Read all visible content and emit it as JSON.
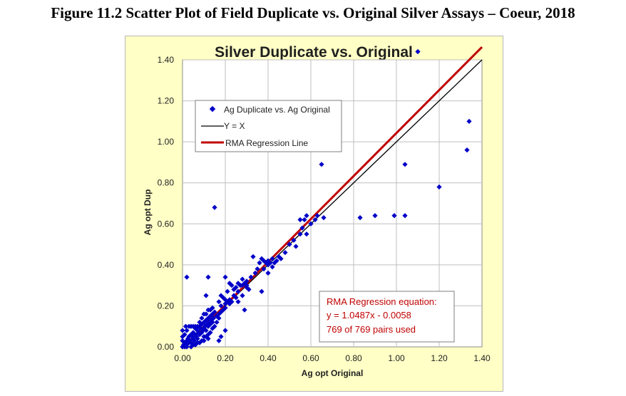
{
  "figure_title": "Figure 11.2  Scatter Plot of Field Duplicate vs. Original Silver Assays – Coeur, 2018",
  "colors": {
    "background": "#ffffc6",
    "points": "#0000c8",
    "identity": "#000000",
    "regression": "#c00000",
    "grid": "#bfbfbf"
  },
  "chart_data": {
    "type": "scatter",
    "title": "Silver Duplicate vs. Original",
    "xlabel": "Ag opt Original",
    "ylabel": "Ag opt Dup",
    "xlim": [
      0,
      1.4
    ],
    "ylim": [
      0,
      1.4
    ],
    "x_ticks": [
      "0.00",
      "0.20",
      "0.40",
      "0.60",
      "0.80",
      "1.00",
      "1.20",
      "1.40"
    ],
    "y_ticks": [
      "0.00",
      "0.20",
      "0.40",
      "0.60",
      "0.80",
      "1.00",
      "1.20",
      "1.40"
    ],
    "grid": true,
    "legend": {
      "position": "top-left",
      "entries": [
        "Ag Duplicate vs. Ag Original",
        "Y = X",
        "RMA Regression Line"
      ]
    },
    "identity_line": {
      "slope": 1,
      "intercept": 0
    },
    "regression": {
      "slope": 1.0487,
      "intercept": -0.0058
    },
    "annotation": [
      "RMA Regression equation:",
      "y = 1.0487x - 0.0058",
      "769 of 769 pairs used"
    ],
    "series": [
      {
        "name": "Ag Duplicate vs. Ag Original",
        "points": [
          [
            0.0,
            0.0
          ],
          [
            0.005,
            0.01
          ],
          [
            0.01,
            0.0
          ],
          [
            0.01,
            0.02
          ],
          [
            0.015,
            0.005
          ],
          [
            0.02,
            0.03
          ],
          [
            0.02,
            0.01
          ],
          [
            0.025,
            0.04
          ],
          [
            0.03,
            0.02
          ],
          [
            0.03,
            0.05
          ],
          [
            0.035,
            0.03
          ],
          [
            0.04,
            0.06
          ],
          [
            0.04,
            0.02
          ],
          [
            0.045,
            0.05
          ],
          [
            0.05,
            0.04
          ],
          [
            0.05,
            0.07
          ],
          [
            0.055,
            0.03
          ],
          [
            0.06,
            0.06
          ],
          [
            0.06,
            0.09
          ],
          [
            0.065,
            0.05
          ],
          [
            0.07,
            0.08
          ],
          [
            0.07,
            0.04
          ],
          [
            0.075,
            0.07
          ],
          [
            0.08,
            0.1
          ],
          [
            0.08,
            0.06
          ],
          [
            0.085,
            0.09
          ],
          [
            0.09,
            0.07
          ],
          [
            0.09,
            0.11
          ],
          [
            0.095,
            0.08
          ],
          [
            0.1,
            0.12
          ],
          [
            0.1,
            0.09
          ],
          [
            0.105,
            0.1
          ],
          [
            0.11,
            0.13
          ],
          [
            0.11,
            0.08
          ],
          [
            0.115,
            0.11
          ],
          [
            0.12,
            0.14
          ],
          [
            0.12,
            0.1
          ],
          [
            0.125,
            0.12
          ],
          [
            0.13,
            0.15
          ],
          [
            0.13,
            0.11
          ],
          [
            0.135,
            0.13
          ],
          [
            0.14,
            0.16
          ],
          [
            0.14,
            0.12
          ],
          [
            0.145,
            0.14
          ],
          [
            0.15,
            0.17
          ],
          [
            0.01,
            0.06
          ],
          [
            0.02,
            0.08
          ],
          [
            0.015,
            0.1
          ],
          [
            0.03,
            0.1
          ],
          [
            0.04,
            0.1
          ],
          [
            0.05,
            0.1
          ],
          [
            0.06,
            0.1
          ],
          [
            0.07,
            0.1
          ],
          [
            0.08,
            0.12
          ],
          [
            0.09,
            0.14
          ],
          [
            0.1,
            0.16
          ],
          [
            0.11,
            0.16
          ],
          [
            0.12,
            0.18
          ],
          [
            0.13,
            0.18
          ],
          [
            0.14,
            0.19
          ],
          [
            0.05,
            0.01
          ],
          [
            0.07,
            0.02
          ],
          [
            0.09,
            0.03
          ],
          [
            0.11,
            0.05
          ],
          [
            0.12,
            0.06
          ],
          [
            0.13,
            0.07
          ],
          [
            0.14,
            0.09
          ],
          [
            0.15,
            0.1
          ],
          [
            0.16,
            0.12
          ],
          [
            0.17,
            0.14
          ],
          [
            0.0,
            0.05
          ],
          [
            0.0,
            0.03
          ],
          [
            0.0,
            0.08
          ],
          [
            0.02,
            0.0
          ],
          [
            0.04,
            0.0
          ],
          [
            0.06,
            0.01
          ],
          [
            0.08,
            0.02
          ],
          [
            0.1,
            0.03
          ],
          [
            0.1,
            0.05
          ],
          [
            0.12,
            0.04
          ],
          [
            0.16,
            0.15
          ],
          [
            0.17,
            0.16
          ],
          [
            0.18,
            0.17
          ],
          [
            0.18,
            0.2
          ],
          [
            0.19,
            0.18
          ],
          [
            0.2,
            0.21
          ],
          [
            0.2,
            0.19
          ],
          [
            0.21,
            0.22
          ],
          [
            0.22,
            0.23
          ],
          [
            0.22,
            0.21
          ],
          [
            0.23,
            0.22
          ],
          [
            0.24,
            0.25
          ],
          [
            0.25,
            0.24
          ],
          [
            0.26,
            0.27
          ],
          [
            0.27,
            0.3
          ],
          [
            0.28,
            0.3
          ],
          [
            0.29,
            0.31
          ],
          [
            0.3,
            0.32
          ],
          [
            0.3,
            0.29
          ],
          [
            0.31,
            0.28
          ],
          [
            0.17,
            0.22
          ],
          [
            0.18,
            0.25
          ],
          [
            0.19,
            0.24
          ],
          [
            0.2,
            0.23
          ],
          [
            0.21,
            0.27
          ],
          [
            0.23,
            0.3
          ],
          [
            0.24,
            0.28
          ],
          [
            0.25,
            0.29
          ],
          [
            0.26,
            0.31
          ],
          [
            0.28,
            0.33
          ],
          [
            0.02,
            0.34
          ],
          [
            0.12,
            0.34
          ],
          [
            0.15,
            0.68
          ],
          [
            0.11,
            0.25
          ],
          [
            0.2,
            0.34
          ],
          [
            0.18,
            0.05
          ],
          [
            0.2,
            0.08
          ],
          [
            0.17,
            0.03
          ],
          [
            0.22,
            0.31
          ],
          [
            0.26,
            0.22
          ],
          [
            0.29,
            0.18
          ],
          [
            0.28,
            0.25
          ],
          [
            0.3,
            0.3
          ],
          [
            0.32,
            0.34
          ],
          [
            0.34,
            0.36
          ],
          [
            0.35,
            0.38
          ],
          [
            0.36,
            0.41
          ],
          [
            0.37,
            0.43
          ],
          [
            0.38,
            0.42
          ],
          [
            0.38,
            0.38
          ],
          [
            0.39,
            0.41
          ],
          [
            0.4,
            0.4
          ],
          [
            0.4,
            0.42
          ],
          [
            0.41,
            0.41
          ],
          [
            0.42,
            0.39
          ],
          [
            0.42,
            0.43
          ],
          [
            0.43,
            0.41
          ],
          [
            0.44,
            0.42
          ],
          [
            0.45,
            0.44
          ],
          [
            0.46,
            0.43
          ],
          [
            0.33,
            0.44
          ],
          [
            0.37,
            0.27
          ],
          [
            0.4,
            0.36
          ],
          [
            0.48,
            0.46
          ],
          [
            0.5,
            0.5
          ],
          [
            0.52,
            0.52
          ],
          [
            0.55,
            0.55
          ],
          [
            0.56,
            0.58
          ],
          [
            0.58,
            0.55
          ],
          [
            0.53,
            0.49
          ],
          [
            0.55,
            0.62
          ],
          [
            0.57,
            0.62
          ],
          [
            0.58,
            0.64
          ],
          [
            0.6,
            0.6
          ],
          [
            0.62,
            0.62
          ],
          [
            0.63,
            0.64
          ],
          [
            0.66,
            0.63
          ],
          [
            0.65,
            0.89
          ],
          [
            0.83,
            0.63
          ],
          [
            0.9,
            0.64
          ],
          [
            0.99,
            0.64
          ],
          [
            1.04,
            0.64
          ],
          [
            1.04,
            0.89
          ],
          [
            1.1,
            1.44
          ],
          [
            1.2,
            0.78
          ],
          [
            1.33,
            0.96
          ],
          [
            1.34,
            1.1
          ]
        ]
      }
    ]
  }
}
